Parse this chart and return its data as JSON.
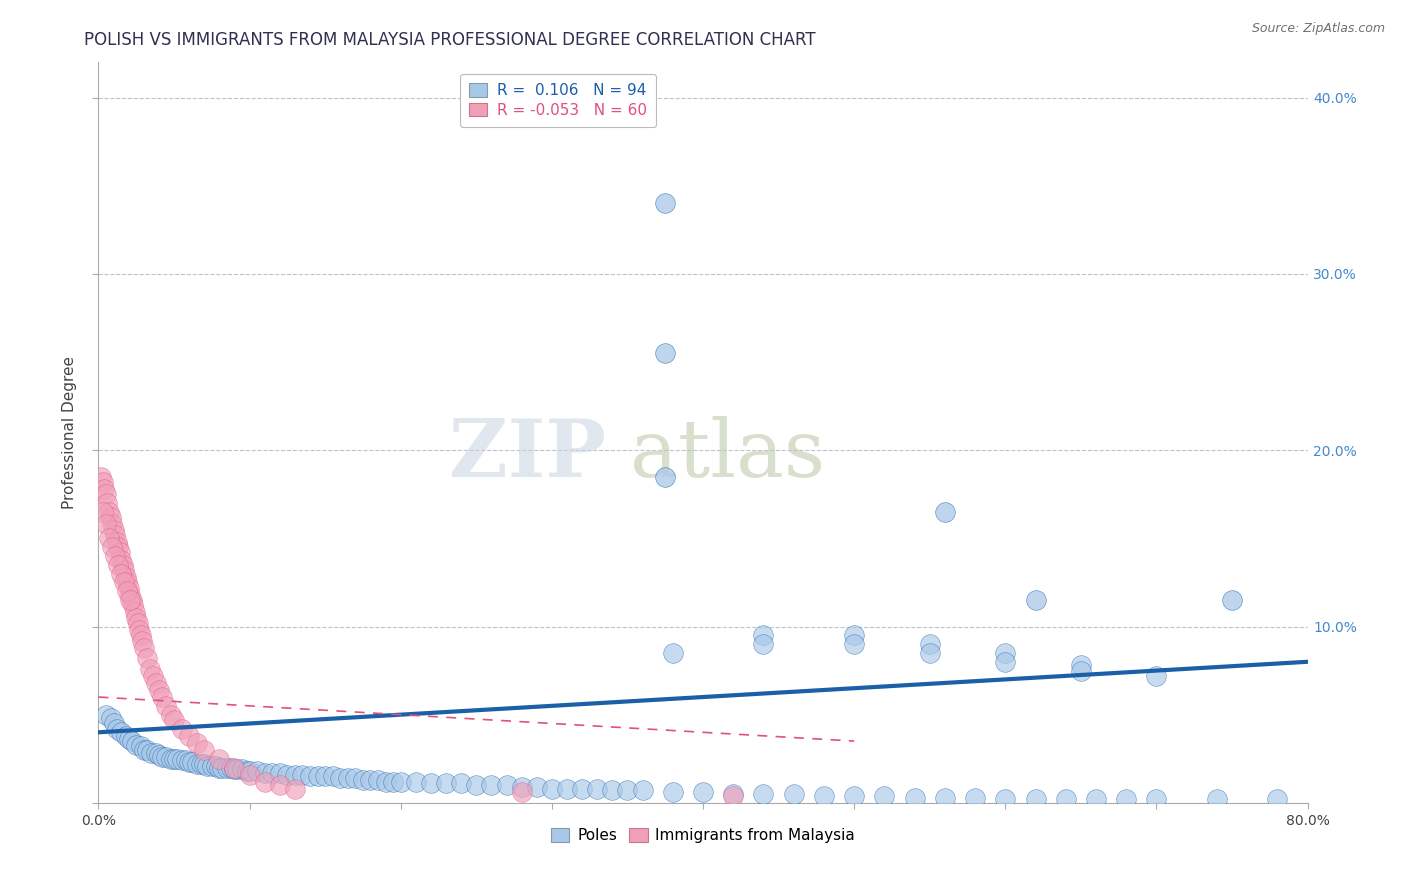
{
  "title": "POLISH VS IMMIGRANTS FROM MALAYSIA PROFESSIONAL DEGREE CORRELATION CHART",
  "source": "Source: ZipAtlas.com",
  "ylabel": "Professional Degree",
  "xlim": [
    0.0,
    0.8
  ],
  "ylim": [
    0.0,
    0.42
  ],
  "xticks": [
    0.0,
    0.1,
    0.2,
    0.3,
    0.4,
    0.5,
    0.6,
    0.7,
    0.8
  ],
  "yticks": [
    0.0,
    0.1,
    0.2,
    0.3,
    0.4
  ],
  "ytick_labels": [
    "",
    "10.0%",
    "20.0%",
    "30.0%",
    "40.0%"
  ],
  "xtick_labels": [
    "0.0%",
    "",
    "",
    "",
    "",
    "",
    "",
    "",
    "80.0%"
  ],
  "legend_label1": "Poles",
  "legend_label2": "Immigrants from Malaysia",
  "color_poles": "#a8c8e8",
  "color_malaysia": "#f0a0b8",
  "color_trend_poles": "#1a5fa8",
  "color_trend_malaysia": "#e05080",
  "watermark_zip": "ZIP",
  "watermark_atlas": "atlas",
  "poles_trend_x": [
    0.0,
    0.8
  ],
  "poles_trend_y": [
    0.04,
    0.08
  ],
  "malaysia_trend_x": [
    0.0,
    0.5
  ],
  "malaysia_trend_y": [
    0.06,
    0.035
  ],
  "poles_x": [
    0.005,
    0.008,
    0.01,
    0.012,
    0.015,
    0.018,
    0.02,
    0.022,
    0.025,
    0.028,
    0.03,
    0.032,
    0.035,
    0.038,
    0.04,
    0.042,
    0.045,
    0.048,
    0.05,
    0.052,
    0.055,
    0.058,
    0.06,
    0.062,
    0.065,
    0.068,
    0.07,
    0.072,
    0.075,
    0.078,
    0.08,
    0.082,
    0.085,
    0.088,
    0.09,
    0.092,
    0.095,
    0.098,
    0.1,
    0.105,
    0.11,
    0.115,
    0.12,
    0.125,
    0.13,
    0.135,
    0.14,
    0.145,
    0.15,
    0.155,
    0.16,
    0.165,
    0.17,
    0.175,
    0.18,
    0.185,
    0.19,
    0.195,
    0.2,
    0.21,
    0.22,
    0.23,
    0.24,
    0.25,
    0.26,
    0.27,
    0.28,
    0.29,
    0.3,
    0.31,
    0.32,
    0.33,
    0.34,
    0.35,
    0.36,
    0.38,
    0.4,
    0.42,
    0.44,
    0.46,
    0.48,
    0.5,
    0.52,
    0.54,
    0.56,
    0.58,
    0.6,
    0.62,
    0.64,
    0.66,
    0.68,
    0.7,
    0.74,
    0.78
  ],
  "poles_y": [
    0.05,
    0.048,
    0.045,
    0.042,
    0.04,
    0.038,
    0.036,
    0.035,
    0.033,
    0.032,
    0.03,
    0.03,
    0.028,
    0.028,
    0.027,
    0.026,
    0.026,
    0.025,
    0.025,
    0.025,
    0.024,
    0.024,
    0.023,
    0.023,
    0.022,
    0.022,
    0.022,
    0.021,
    0.021,
    0.021,
    0.02,
    0.02,
    0.02,
    0.02,
    0.019,
    0.019,
    0.019,
    0.018,
    0.018,
    0.018,
    0.017,
    0.017,
    0.017,
    0.016,
    0.016,
    0.016,
    0.015,
    0.015,
    0.015,
    0.015,
    0.014,
    0.014,
    0.014,
    0.013,
    0.013,
    0.013,
    0.012,
    0.012,
    0.012,
    0.012,
    0.011,
    0.011,
    0.011,
    0.01,
    0.01,
    0.01,
    0.009,
    0.009,
    0.008,
    0.008,
    0.008,
    0.008,
    0.007,
    0.007,
    0.007,
    0.006,
    0.006,
    0.005,
    0.005,
    0.005,
    0.004,
    0.004,
    0.004,
    0.003,
    0.003,
    0.003,
    0.002,
    0.002,
    0.002,
    0.002,
    0.002,
    0.002,
    0.002,
    0.002
  ],
  "poles_outliers_x": [
    0.375,
    0.375,
    0.375,
    0.56,
    0.62,
    0.75
  ],
  "poles_outliers_y": [
    0.34,
    0.255,
    0.185,
    0.165,
    0.115,
    0.115
  ],
  "poles_mid_x": [
    0.38,
    0.44,
    0.44,
    0.5,
    0.5,
    0.55,
    0.55,
    0.6,
    0.6,
    0.65,
    0.65,
    0.7
  ],
  "poles_mid_y": [
    0.085,
    0.095,
    0.09,
    0.095,
    0.09,
    0.09,
    0.085,
    0.085,
    0.08,
    0.078,
    0.075,
    0.072
  ],
  "malaysia_x": [
    0.002,
    0.003,
    0.004,
    0.005,
    0.006,
    0.007,
    0.008,
    0.009,
    0.01,
    0.011,
    0.012,
    0.013,
    0.014,
    0.015,
    0.016,
    0.017,
    0.018,
    0.019,
    0.02,
    0.021,
    0.022,
    0.023,
    0.024,
    0.025,
    0.026,
    0.027,
    0.028,
    0.029,
    0.03,
    0.032,
    0.034,
    0.036,
    0.038,
    0.04,
    0.042,
    0.045,
    0.048,
    0.05,
    0.055,
    0.06,
    0.065,
    0.07,
    0.08,
    0.09,
    0.1,
    0.11,
    0.12,
    0.13,
    0.28,
    0.42,
    0.003,
    0.005,
    0.007,
    0.009,
    0.011,
    0.013,
    0.015,
    0.017,
    0.019,
    0.021
  ],
  "malaysia_y": [
    0.185,
    0.182,
    0.178,
    0.175,
    0.17,
    0.165,
    0.162,
    0.158,
    0.155,
    0.152,
    0.148,
    0.145,
    0.142,
    0.138,
    0.135,
    0.132,
    0.128,
    0.125,
    0.122,
    0.118,
    0.115,
    0.112,
    0.108,
    0.105,
    0.102,
    0.098,
    0.095,
    0.092,
    0.088,
    0.082,
    0.076,
    0.072,
    0.068,
    0.064,
    0.06,
    0.055,
    0.05,
    0.047,
    0.042,
    0.038,
    0.034,
    0.03,
    0.025,
    0.02,
    0.016,
    0.012,
    0.01,
    0.008,
    0.006,
    0.004,
    0.165,
    0.158,
    0.15,
    0.145,
    0.14,
    0.135,
    0.13,
    0.125,
    0.12,
    0.115
  ]
}
